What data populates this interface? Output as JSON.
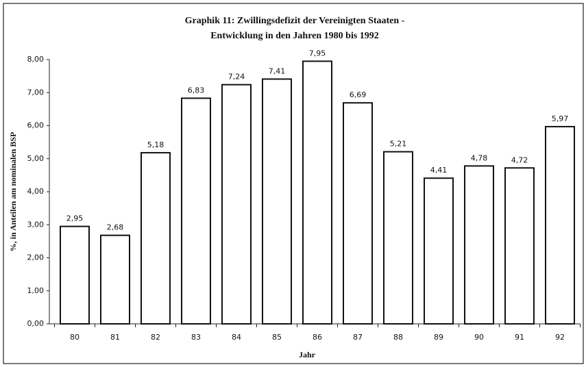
{
  "chart_data": {
    "type": "bar",
    "title": [
      "Graphik 11: Zwillingsdefizit der Vereinigten Staaten -",
      "Entwicklung in den Jahren 1980 bis 1992"
    ],
    "x_label": "Jahr",
    "y_label": "%, in Anteilen am nominalen BSP",
    "categories": [
      "80",
      "81",
      "82",
      "83",
      "84",
      "85",
      "86",
      "87",
      "88",
      "89",
      "90",
      "91",
      "92"
    ],
    "values": [
      2.95,
      2.68,
      5.18,
      6.83,
      7.24,
      7.41,
      7.95,
      6.69,
      5.21,
      4.41,
      4.78,
      4.72,
      5.97
    ],
    "value_labels": [
      "2,95",
      "2,68",
      "5,18",
      "6,83",
      "7,24",
      "7,41",
      "7,95",
      "6,69",
      "5,21",
      "4,41",
      "4,78",
      "4,72",
      "5,97"
    ],
    "color": "#ffffff",
    "ylim": [
      0,
      8
    ],
    "yticks": [
      {
        "value": 0,
        "label": "0,00"
      },
      {
        "value": 1,
        "label": "1,00"
      },
      {
        "value": 2,
        "label": "2,00"
      },
      {
        "value": 3,
        "label": "3,00"
      },
      {
        "value": 4,
        "label": "4,00"
      },
      {
        "value": 5,
        "label": "5,00"
      },
      {
        "value": 6,
        "label": "6,00"
      },
      {
        "value": 7,
        "label": "7,00"
      },
      {
        "value": 8,
        "label": "8,00"
      }
    ],
    "grid": false
  }
}
